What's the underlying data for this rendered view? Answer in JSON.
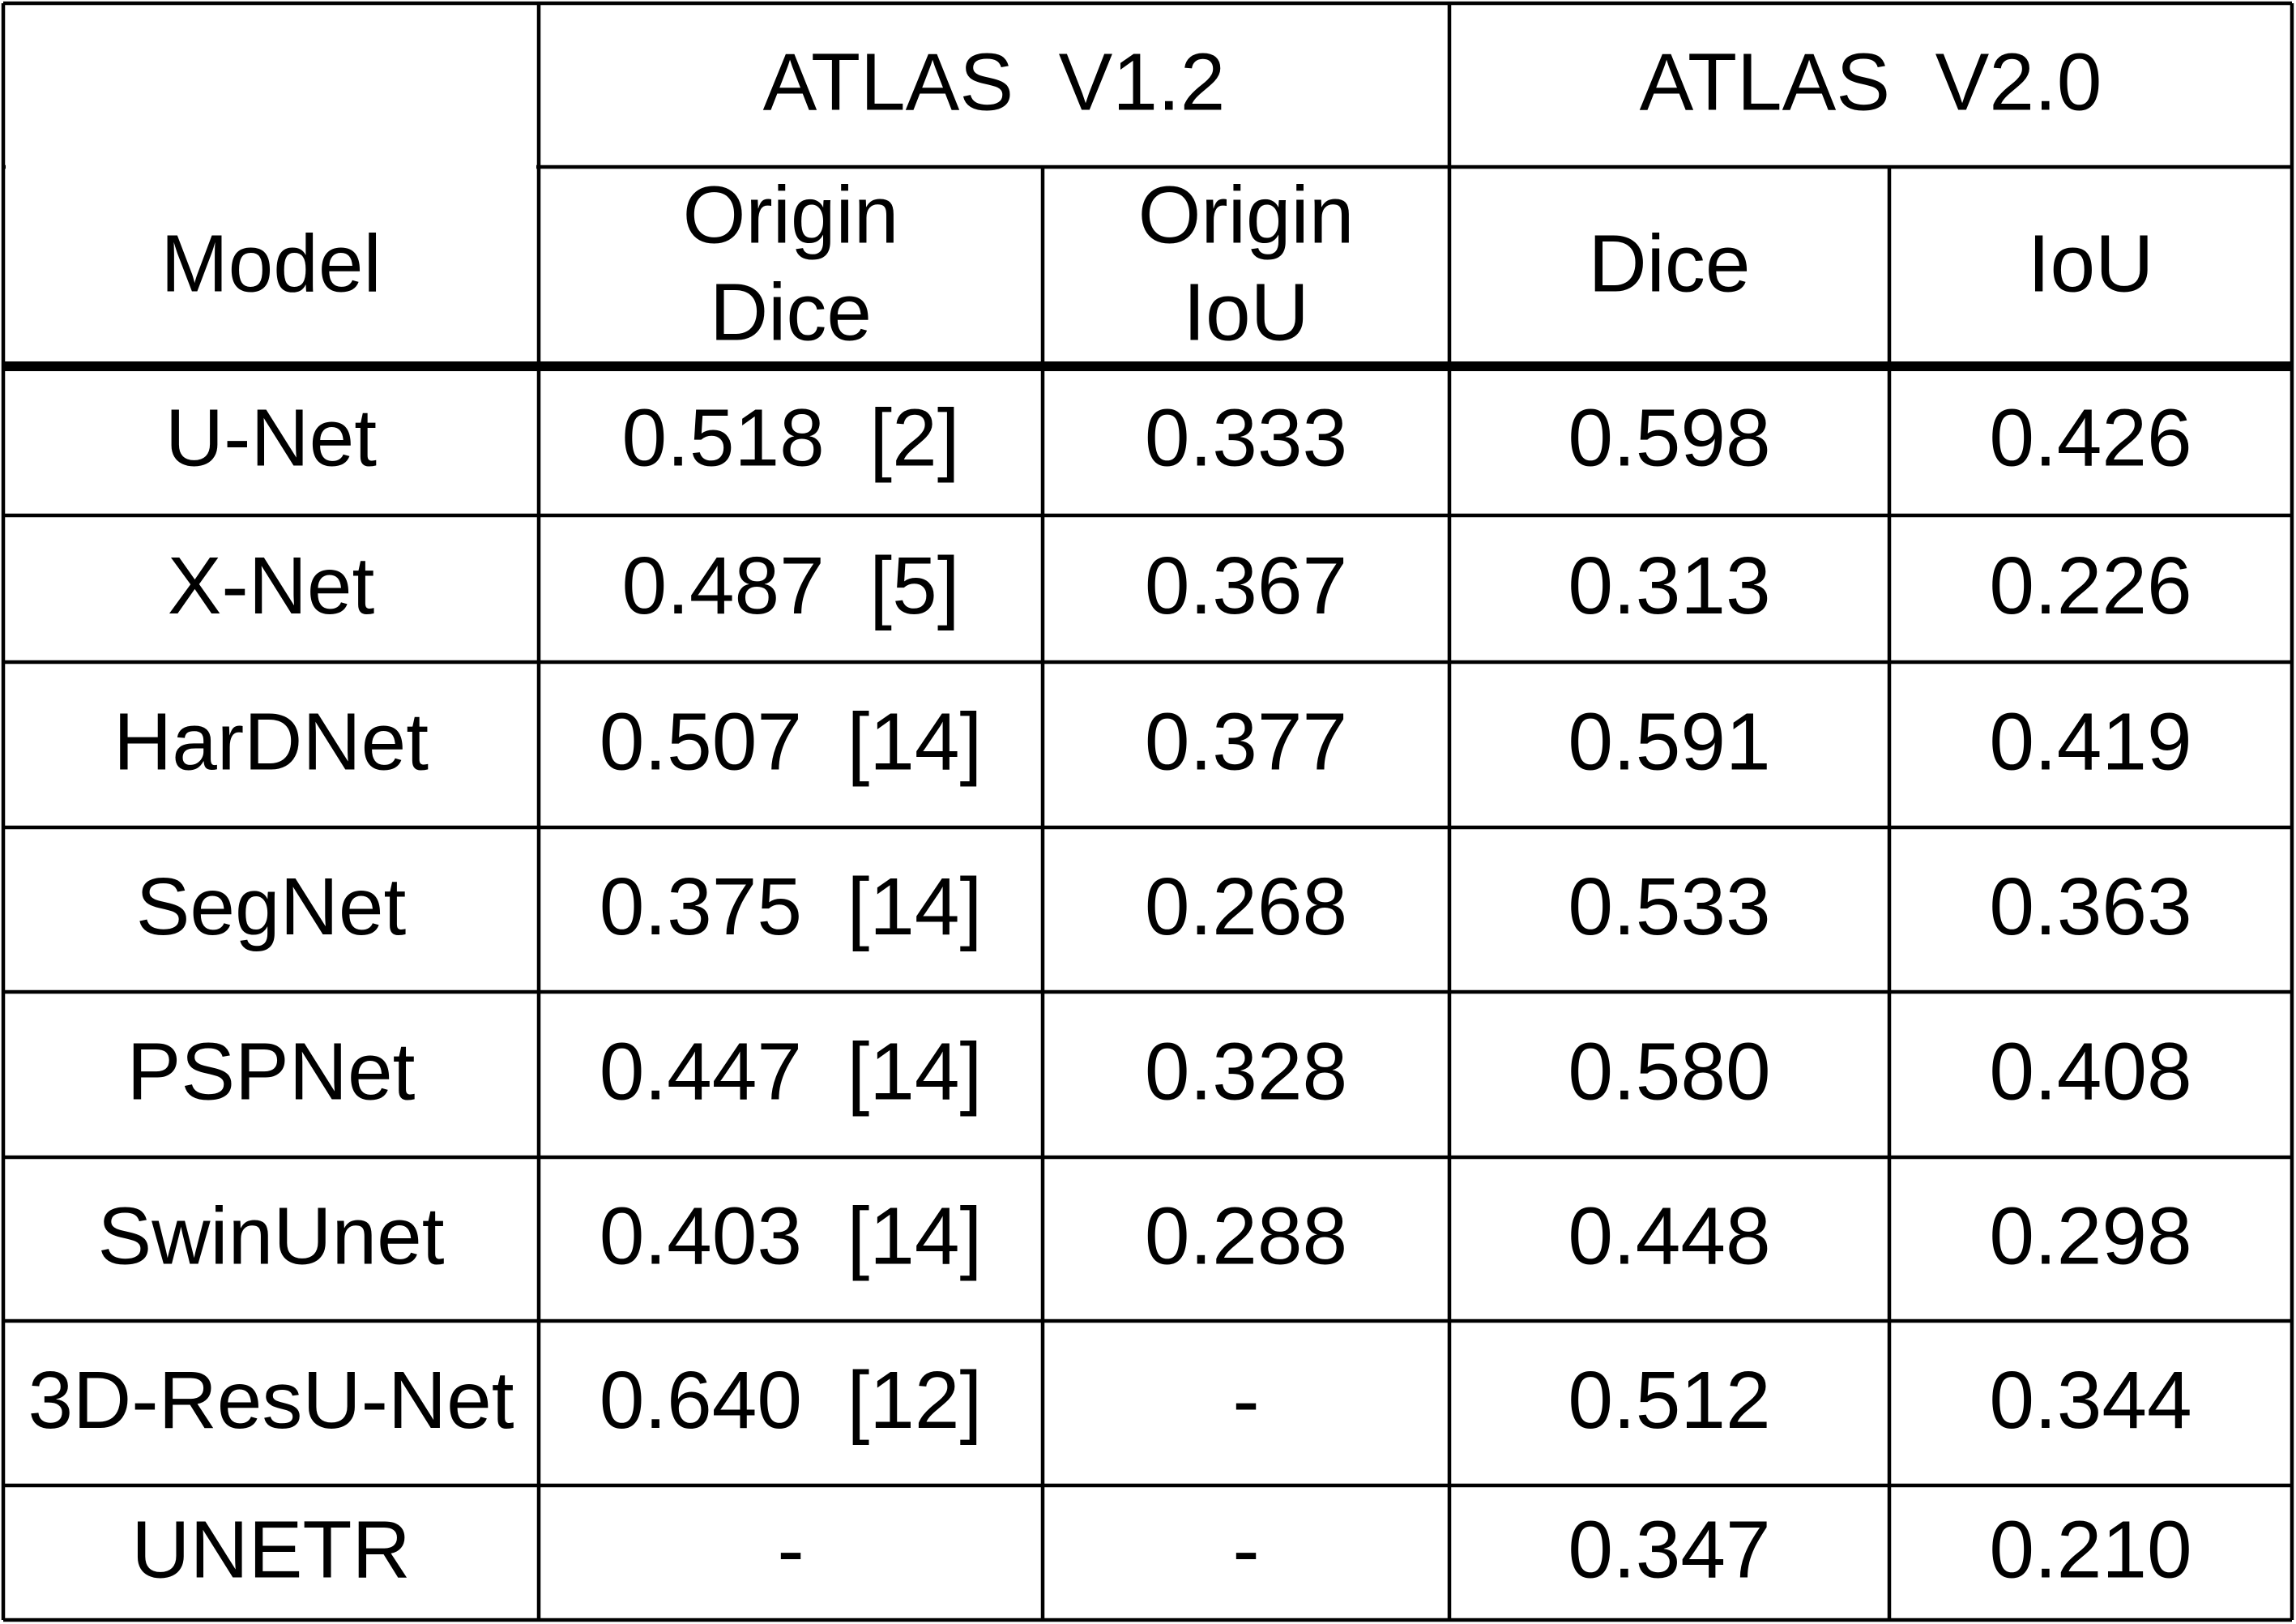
{
  "table": {
    "groups": [
      "ATLAS  V1.2",
      "ATLAS  V2.0"
    ],
    "columns": [
      [
        "Model"
      ],
      [
        "Origin",
        "Dice"
      ],
      [
        "Origin",
        "IoU"
      ],
      [
        "Dice"
      ],
      [
        "IoU"
      ]
    ],
    "rows": [
      [
        "U-Net",
        "0.518  [2]",
        "0.333",
        "0.598",
        "0.426"
      ],
      [
        "X-Net",
        "0.487  [5]",
        "0.367",
        "0.313",
        "0.226"
      ],
      [
        "HarDNet",
        "0.507  [14]",
        "0.377",
        "0.591",
        "0.419"
      ],
      [
        "SegNet",
        "0.375  [14]",
        "0.268",
        "0.533",
        "0.363"
      ],
      [
        "PSPNet",
        "0.447  [14]",
        "0.328",
        "0.580",
        "0.408"
      ],
      [
        "SwinUnet",
        "0.403  [14]",
        "0.288",
        "0.448",
        "0.298"
      ],
      [
        "3D-ResU-Net",
        "0.640  [12]",
        "-",
        "0.512",
        "0.344"
      ],
      [
        "UNETR",
        "-",
        "-",
        "0.347",
        "0.210"
      ]
    ]
  }
}
